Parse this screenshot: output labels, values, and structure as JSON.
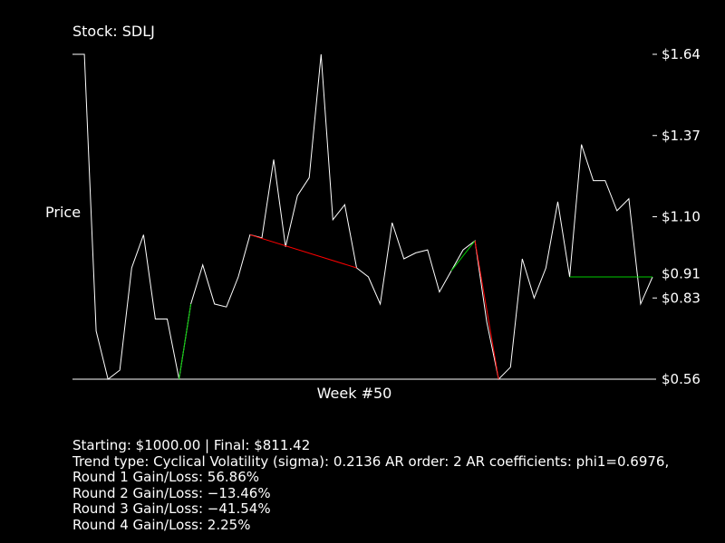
{
  "chart_data": {
    "type": "line",
    "title": "Stock: SDLJ",
    "ylabel": "Price",
    "xlabel": "Week #50",
    "ylim": [
      0.56,
      1.64
    ],
    "y_ticks": [
      "$1.64",
      "$1.37",
      "$1.10",
      "$0.91",
      "$0.83",
      "$0.56"
    ],
    "y_tick_values": [
      1.64,
      1.37,
      1.1,
      0.91,
      0.83,
      0.56
    ],
    "y_tick_dash": [
      true,
      true,
      true,
      false,
      true,
      false
    ],
    "grid": false,
    "colors": {
      "price": "#ffffff",
      "gain": "#00cc00",
      "loss": "#ff0000",
      "axis": "#ffffff"
    },
    "series": [
      {
        "values": [
          1.64,
          1.64,
          0.72,
          0.56,
          0.59,
          0.93,
          1.04,
          0.76,
          0.76,
          0.56,
          0.81,
          0.94,
          0.81,
          0.8,
          0.9,
          1.04,
          1.03,
          1.29,
          1.0,
          1.17,
          1.23,
          1.64,
          1.09,
          1.14,
          0.93,
          0.9,
          0.81,
          1.08,
          0.96,
          0.98,
          0.99,
          0.85,
          0.92,
          0.99,
          1.02,
          0.75,
          0.56,
          0.6,
          0.96,
          0.83,
          0.93,
          1.15,
          0.9,
          1.34,
          1.22,
          1.22,
          1.12,
          1.16,
          0.81,
          0.9
        ]
      }
    ],
    "segments": [
      {
        "from": 9,
        "to": 10,
        "kind": "gain"
      },
      {
        "from": 15,
        "to": 24,
        "kind": "loss"
      },
      {
        "from": 32,
        "to": 34,
        "kind": "gain"
      },
      {
        "from": 34,
        "to": 36,
        "kind": "loss"
      },
      {
        "from": 42,
        "to": 49,
        "kind": "gain"
      }
    ]
  },
  "info": {
    "summary": "Starting: $1000.00 | Final: $811.42",
    "trend": "Trend type: Cyclical Volatility (sigma): 0.2136 AR order: 2 AR coefficients: phi1=0.6976,",
    "rounds": [
      "Round 1 Gain/Loss: 56.86%",
      "Round 2 Gain/Loss: −13.46%",
      "Round 3 Gain/Loss: −41.54%",
      "Round 4 Gain/Loss: 2.25%"
    ]
  }
}
